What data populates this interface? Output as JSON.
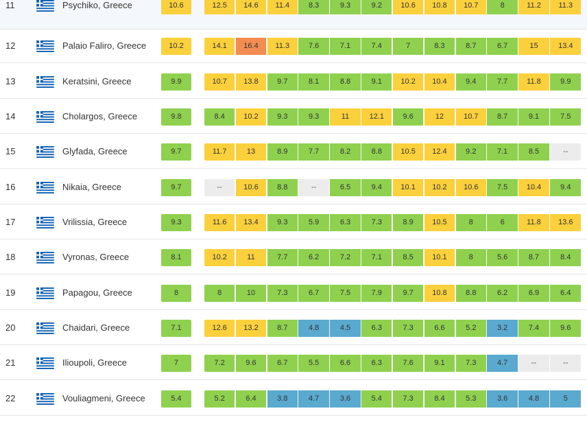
{
  "colors": {
    "green": "#8fd14f",
    "yellow": "#fbd03d",
    "orange": "#f28c50",
    "blue": "#5aa9cf",
    "na": "#ececec"
  },
  "flag_icon": "greece-flag-icon",
  "rows": [
    {
      "rank": "11",
      "city": "Psychiko, Greece",
      "main": "10.6",
      "main_color": "yellow",
      "months": [
        [
          "12.5",
          "yellow"
        ],
        [
          "14.6",
          "yellow"
        ],
        [
          "11.4",
          "yellow"
        ],
        [
          "8.3",
          "green"
        ],
        [
          "9.3",
          "green"
        ],
        [
          "9.2",
          "green"
        ],
        [
          "10.6",
          "yellow"
        ],
        [
          "10.8",
          "yellow"
        ],
        [
          "10.7",
          "yellow"
        ],
        [
          "8",
          "green"
        ],
        [
          "11.2",
          "yellow"
        ],
        [
          "11.3",
          "yellow"
        ]
      ]
    },
    {
      "rank": "12",
      "city": "Palaio Faliro, Greece",
      "main": "10.2",
      "main_color": "yellow",
      "months": [
        [
          "14.1",
          "yellow"
        ],
        [
          "16.4",
          "orange"
        ],
        [
          "11.3",
          "yellow"
        ],
        [
          "7.6",
          "green"
        ],
        [
          "7.1",
          "green"
        ],
        [
          "7.4",
          "green"
        ],
        [
          "7",
          "green"
        ],
        [
          "8.3",
          "green"
        ],
        [
          "8.7",
          "green"
        ],
        [
          "6.7",
          "green"
        ],
        [
          "15",
          "yellow"
        ],
        [
          "13.4",
          "yellow"
        ]
      ]
    },
    {
      "rank": "13",
      "city": "Keratsini, Greece",
      "main": "9.9",
      "main_color": "green",
      "months": [
        [
          "10.7",
          "yellow"
        ],
        [
          "13.8",
          "yellow"
        ],
        [
          "9.7",
          "green"
        ],
        [
          "8.1",
          "green"
        ],
        [
          "8.8",
          "green"
        ],
        [
          "9.1",
          "green"
        ],
        [
          "10.2",
          "yellow"
        ],
        [
          "10.4",
          "yellow"
        ],
        [
          "9.4",
          "green"
        ],
        [
          "7.7",
          "green"
        ],
        [
          "11.8",
          "yellow"
        ],
        [
          "9.9",
          "green"
        ]
      ]
    },
    {
      "rank": "14",
      "city": "Cholargos, Greece",
      "main": "9.8",
      "main_color": "green",
      "months": [
        [
          "8.4",
          "green"
        ],
        [
          "10.2",
          "yellow"
        ],
        [
          "9.3",
          "green"
        ],
        [
          "9.3",
          "green"
        ],
        [
          "11",
          "yellow"
        ],
        [
          "12.1",
          "yellow"
        ],
        [
          "9.6",
          "green"
        ],
        [
          "12",
          "yellow"
        ],
        [
          "10.7",
          "yellow"
        ],
        [
          "8.7",
          "green"
        ],
        [
          "9.1",
          "green"
        ],
        [
          "7.5",
          "green"
        ]
      ]
    },
    {
      "rank": "15",
      "city": "Glyfada, Greece",
      "main": "9.7",
      "main_color": "green",
      "months": [
        [
          "11.7",
          "yellow"
        ],
        [
          "13",
          "yellow"
        ],
        [
          "8.9",
          "green"
        ],
        [
          "7.7",
          "green"
        ],
        [
          "8.2",
          "green"
        ],
        [
          "8.8",
          "green"
        ],
        [
          "10.5",
          "yellow"
        ],
        [
          "12.4",
          "yellow"
        ],
        [
          "9.2",
          "green"
        ],
        [
          "7.1",
          "green"
        ],
        [
          "8.5",
          "green"
        ],
        [
          "--",
          "na"
        ]
      ]
    },
    {
      "rank": "16",
      "city": "Nikaia, Greece",
      "main": "9.7",
      "main_color": "green",
      "months": [
        [
          "--",
          "na"
        ],
        [
          "10.6",
          "yellow"
        ],
        [
          "8.8",
          "green"
        ],
        [
          "--",
          "na"
        ],
        [
          "6.5",
          "green"
        ],
        [
          "9.4",
          "green"
        ],
        [
          "10.1",
          "yellow"
        ],
        [
          "10.2",
          "yellow"
        ],
        [
          "10.6",
          "yellow"
        ],
        [
          "7.5",
          "green"
        ],
        [
          "10.4",
          "yellow"
        ],
        [
          "9.4",
          "green"
        ]
      ]
    },
    {
      "rank": "17",
      "city": "Vrilissia, Greece",
      "main": "9.3",
      "main_color": "green",
      "months": [
        [
          "11.6",
          "yellow"
        ],
        [
          "13.4",
          "yellow"
        ],
        [
          "9.3",
          "green"
        ],
        [
          "5.9",
          "green"
        ],
        [
          "6.3",
          "green"
        ],
        [
          "7.3",
          "green"
        ],
        [
          "8.9",
          "green"
        ],
        [
          "10.5",
          "yellow"
        ],
        [
          "8",
          "green"
        ],
        [
          "6",
          "green"
        ],
        [
          "11.8",
          "yellow"
        ],
        [
          "13.6",
          "yellow"
        ]
      ]
    },
    {
      "rank": "18",
      "city": "Vyronas, Greece",
      "main": "8.1",
      "main_color": "green",
      "months": [
        [
          "10.2",
          "yellow"
        ],
        [
          "11",
          "yellow"
        ],
        [
          "7.7",
          "green"
        ],
        [
          "6.2",
          "green"
        ],
        [
          "7.2",
          "green"
        ],
        [
          "7.1",
          "green"
        ],
        [
          "8.5",
          "green"
        ],
        [
          "10.1",
          "yellow"
        ],
        [
          "8",
          "green"
        ],
        [
          "5.6",
          "green"
        ],
        [
          "8.7",
          "green"
        ],
        [
          "8.4",
          "green"
        ]
      ]
    },
    {
      "rank": "19",
      "city": "Papagou, Greece",
      "main": "8",
      "main_color": "green",
      "months": [
        [
          "8",
          "green"
        ],
        [
          "10",
          "green"
        ],
        [
          "7.3",
          "green"
        ],
        [
          "6.7",
          "green"
        ],
        [
          "7.5",
          "green"
        ],
        [
          "7.9",
          "green"
        ],
        [
          "9.7",
          "green"
        ],
        [
          "10.8",
          "yellow"
        ],
        [
          "8.8",
          "green"
        ],
        [
          "6.2",
          "green"
        ],
        [
          "6.9",
          "green"
        ],
        [
          "6.4",
          "green"
        ]
      ]
    },
    {
      "rank": "20",
      "city": "Chaidari, Greece",
      "main": "7.1",
      "main_color": "green",
      "months": [
        [
          "12.6",
          "yellow"
        ],
        [
          "13.2",
          "yellow"
        ],
        [
          "8.7",
          "green"
        ],
        [
          "4.8",
          "blue"
        ],
        [
          "4.5",
          "blue"
        ],
        [
          "6.3",
          "green"
        ],
        [
          "7.3",
          "green"
        ],
        [
          "6.6",
          "green"
        ],
        [
          "5.2",
          "green"
        ],
        [
          "3.2",
          "blue"
        ],
        [
          "7.4",
          "green"
        ],
        [
          "9.6",
          "green"
        ]
      ]
    },
    {
      "rank": "21",
      "city": "Ilioupoli, Greece",
      "main": "7",
      "main_color": "green",
      "months": [
        [
          "7.2",
          "green"
        ],
        [
          "9.6",
          "green"
        ],
        [
          "6.7",
          "green"
        ],
        [
          "5.5",
          "green"
        ],
        [
          "6.6",
          "green"
        ],
        [
          "6.3",
          "green"
        ],
        [
          "7.6",
          "green"
        ],
        [
          "9.1",
          "green"
        ],
        [
          "7.3",
          "green"
        ],
        [
          "4.7",
          "blue"
        ],
        [
          "--",
          "na"
        ],
        [
          "--",
          "na"
        ]
      ]
    },
    {
      "rank": "22",
      "city": "Vouliagmeni, Greece",
      "main": "5.4",
      "main_color": "green",
      "months": [
        [
          "5.2",
          "green"
        ],
        [
          "6.4",
          "green"
        ],
        [
          "3.8",
          "blue"
        ],
        [
          "4.7",
          "blue"
        ],
        [
          "3.6",
          "blue"
        ],
        [
          "5.4",
          "green"
        ],
        [
          "7.3",
          "green"
        ],
        [
          "8.4",
          "green"
        ],
        [
          "5.3",
          "green"
        ],
        [
          "3.6",
          "blue"
        ],
        [
          "4.8",
          "blue"
        ],
        [
          "5",
          "blue"
        ]
      ]
    }
  ]
}
